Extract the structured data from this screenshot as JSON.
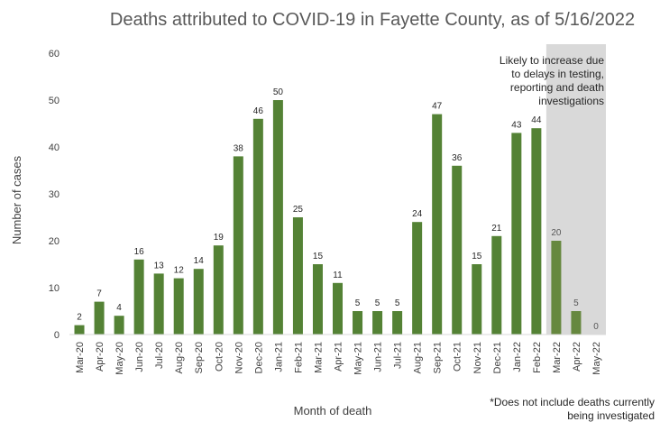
{
  "chart_data": {
    "type": "bar",
    "title": "Deaths attributed to COVID-19 in Fayette County, as of 5/16/2022",
    "xlabel": "Month of death",
    "ylabel": "Number of cases",
    "ylim": [
      0,
      60
    ],
    "yticks": [
      0,
      10,
      20,
      30,
      40,
      50,
      60
    ],
    "grid": false,
    "categories": [
      "Mar-20",
      "Apr-20",
      "May-20",
      "Jun-20",
      "Jul-20",
      "Aug-20",
      "Sep-20",
      "Oct-20",
      "Nov-20",
      "Dec-20",
      "Jan-21",
      "Feb-21",
      "Mar-21",
      "Apr-21",
      "May-21",
      "Jun-21",
      "Jul-21",
      "Aug-21",
      "Sep-21",
      "Oct-21",
      "Nov-21",
      "Dec-21",
      "Jan-22",
      "Feb-22",
      "Mar-22",
      "Apr-22",
      "May-22"
    ],
    "values": [
      2,
      7,
      4,
      16,
      13,
      12,
      14,
      19,
      38,
      46,
      50,
      25,
      15,
      11,
      5,
      5,
      5,
      24,
      47,
      36,
      15,
      21,
      43,
      44,
      20,
      5,
      0
    ],
    "data_labels": [
      "2",
      "7",
      "4",
      "16",
      "13",
      "12",
      "14",
      "19",
      "38",
      "46",
      "50",
      "25",
      "15",
      "11",
      "5",
      "5",
      "5",
      "24",
      "47",
      "36",
      "15",
      "21",
      "43",
      "44",
      "20",
      "5",
      "0"
    ],
    "bar_color": "#548235",
    "shaded_region": {
      "categories": [
        "Mar-22",
        "Apr-22",
        "May-22"
      ],
      "color": "#d9d9d9",
      "bar_color": "#66883f",
      "note_lines": [
        "Likely to increase due",
        "to delays in testing,",
        "reporting and death",
        "investigations"
      ]
    },
    "footnote_lines": [
      "*Does not include deaths currently",
      "being investigated"
    ]
  }
}
